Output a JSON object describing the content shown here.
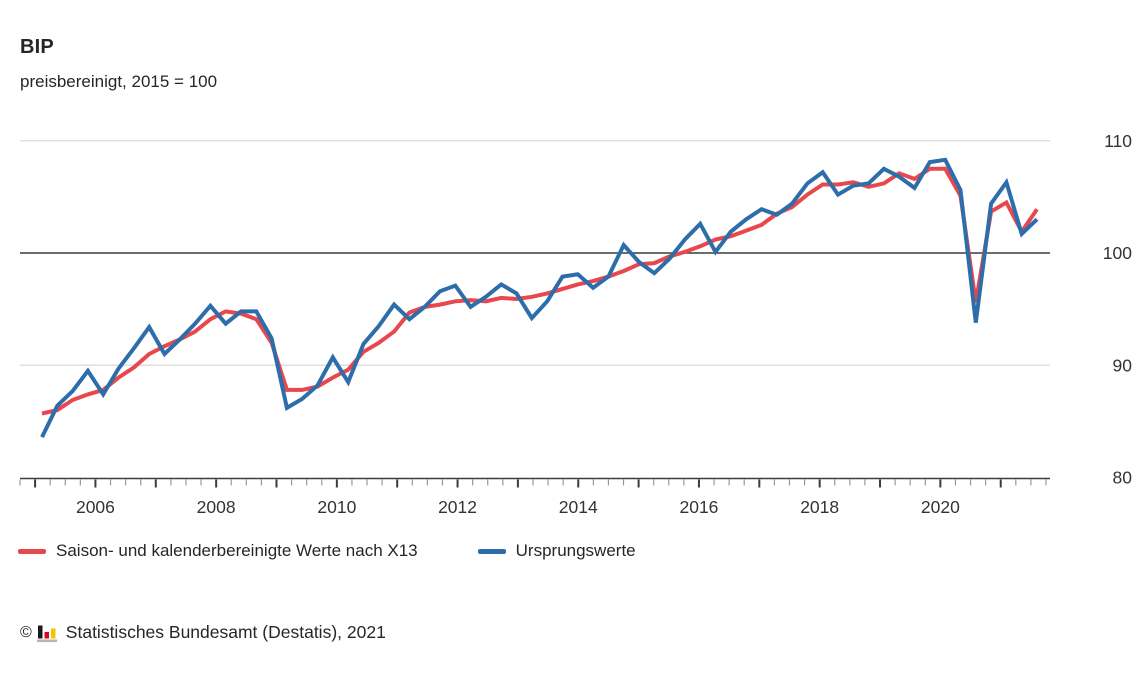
{
  "chart_data": {
    "type": "line",
    "title": "BIP",
    "subtitle": "preisbereinigt, 2015 = 100",
    "x_unit": "quarter",
    "x_start": "2005-Q1",
    "x_end": "2021-Q2",
    "x_tick_labels": [
      "2006",
      "2008",
      "2010",
      "2012",
      "2014",
      "2016",
      "2018",
      "2020"
    ],
    "y_ticks": [
      80,
      90,
      100,
      110
    ],
    "ylim": [
      80,
      110
    ],
    "y_axis_side": "right",
    "reference_line": 100,
    "grid": "horizontal-light",
    "legend_position": "bottom-left",
    "series": [
      {
        "name": "Saison- und kalenderbereinigte Werte nach X13",
        "color": "#e8474d",
        "values": [
          85.7,
          86.0,
          86.9,
          87.4,
          87.8,
          88.9,
          89.8,
          91.0,
          91.7,
          92.3,
          93.0,
          94.1,
          94.8,
          94.6,
          94.1,
          92.0,
          87.8,
          87.8,
          88.1,
          88.9,
          89.6,
          91.2,
          92.0,
          93.0,
          94.7,
          95.2,
          95.4,
          95.7,
          95.8,
          95.7,
          96.0,
          95.9,
          96.1,
          96.4,
          96.8,
          97.2,
          97.5,
          97.9,
          98.4,
          99.0,
          99.1,
          99.7,
          100.1,
          100.6,
          101.2,
          101.5,
          102.0,
          102.5,
          103.5,
          104.1,
          105.2,
          106.1,
          106.1,
          106.3,
          105.9,
          106.2,
          107.1,
          106.6,
          107.5,
          107.5,
          105.1,
          95.6,
          103.7,
          104.5,
          101.9,
          103.9
        ]
      },
      {
        "name": "Ursprungswerte",
        "color": "#2d6eaa",
        "values": [
          83.6,
          86.4,
          87.7,
          89.5,
          87.4,
          89.7,
          91.5,
          93.4,
          91.0,
          92.3,
          93.7,
          95.3,
          93.7,
          94.8,
          94.8,
          92.4,
          86.2,
          87.0,
          88.2,
          90.7,
          88.5,
          91.9,
          93.5,
          95.4,
          94.1,
          95.2,
          96.6,
          97.1,
          95.2,
          96.1,
          97.2,
          96.4,
          94.2,
          95.7,
          97.9,
          98.1,
          96.9,
          97.9,
          100.7,
          99.2,
          98.2,
          99.5,
          101.2,
          102.6,
          100.1,
          101.9,
          103.0,
          103.9,
          103.4,
          104.4,
          106.2,
          107.2,
          105.2,
          106.0,
          106.2,
          107.5,
          106.8,
          105.8,
          108.1,
          108.3,
          105.6,
          93.8,
          104.4,
          106.3,
          101.7,
          103.0
        ]
      }
    ],
    "colors": {
      "grid": "#d9d9d9",
      "axis": "#3c3c3c",
      "minor_tick": "#999999",
      "label_text": "#333333"
    }
  },
  "footer": {
    "copyright": "©",
    "source": "Statistisches Bundesamt (Destatis), 2021",
    "logo_colors": {
      "bar_black": "#1a1a1a",
      "bar_red": "#e2001a",
      "bar_gold": "#f5c400",
      "base_gray": "#b4b4b4"
    }
  }
}
